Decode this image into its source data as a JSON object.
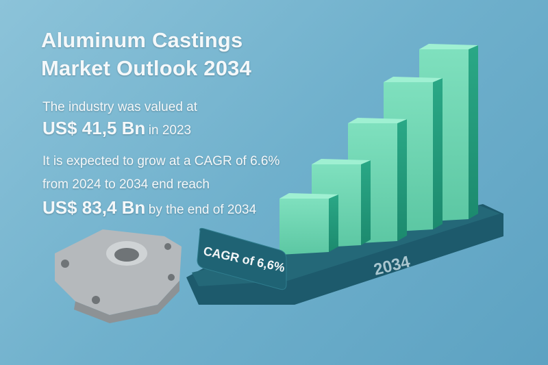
{
  "title": {
    "line1": "Aluminum Castings",
    "line2": "Market Outlook 2034"
  },
  "text": {
    "valued_intro": "The industry was valued at",
    "value_2023": "US$ 41,5 Bn",
    "value_2023_suffix": "in 2023",
    "growth_line": "It is expected to grow at a CAGR of 6.6%",
    "period_line": "from 2024 to 2034 end reach",
    "value_2034": "US$ 83,4 Bn",
    "value_2034_suffix": "by the end of 2034"
  },
  "graphic": {
    "cagr_tag": "CAGR of 6,6%",
    "platform_year": "2034",
    "bar_count": 5,
    "colors": {
      "bar_light": "#6fd3b0",
      "bar_dark": "#1f9a7a",
      "platform": "#1f5f70",
      "casting": "#b8bcbf"
    }
  }
}
